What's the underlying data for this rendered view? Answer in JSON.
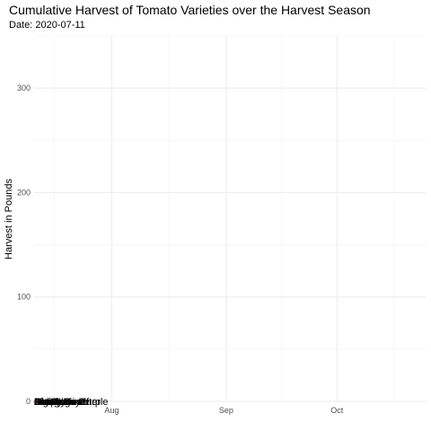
{
  "chart_data": {
    "type": "line",
    "title": "Cumulative Harvest of Tomato Varieties over the Harvest Season",
    "subtitle": "Date: 2020-07-11",
    "xlabel": "",
    "ylabel": "Harvest in Pounds",
    "xlim": [
      "2020-07-11",
      "2020-10-25"
    ],
    "ylim": [
      0,
      350
    ],
    "x_ticks": [
      {
        "date": "2020-08-01",
        "label": "Aug"
      },
      {
        "date": "2020-09-01",
        "label": "Sep"
      },
      {
        "date": "2020-10-01",
        "label": "Oct"
      }
    ],
    "y_ticks": [
      0,
      100,
      200,
      300
    ],
    "grid": true,
    "series": [
      {
        "name": "Amish Paste",
        "points": [
          {
            "x": "2020-07-11",
            "y": 0
          }
        ]
      },
      {
        "name": "Better Boy",
        "points": [
          {
            "x": "2020-07-11",
            "y": 0
          }
        ]
      },
      {
        "name": "Big Beef",
        "points": [
          {
            "x": "2020-07-11",
            "y": 0
          }
        ]
      },
      {
        "name": "Bonny Best",
        "points": [
          {
            "x": "2020-07-11",
            "y": 0
          }
        ]
      },
      {
        "name": "Brandywine",
        "points": [
          {
            "x": "2020-07-11",
            "y": 0
          }
        ]
      },
      {
        "name": "Cherokee Purple",
        "points": [
          {
            "x": "2020-07-11",
            "y": 0
          }
        ]
      },
      {
        "name": "Jet Star",
        "points": [
          {
            "x": "2020-07-11",
            "y": 0
          }
        ]
      },
      {
        "name": "Mortgage Lifter",
        "points": [
          {
            "x": "2020-07-11",
            "y": 0
          }
        ]
      },
      {
        "name": "Old German",
        "points": [
          {
            "x": "2020-07-11",
            "y": 0
          }
        ]
      },
      {
        "name": "Grape",
        "points": [
          {
            "x": "2020-07-11",
            "y": 0
          }
        ]
      }
    ]
  }
}
